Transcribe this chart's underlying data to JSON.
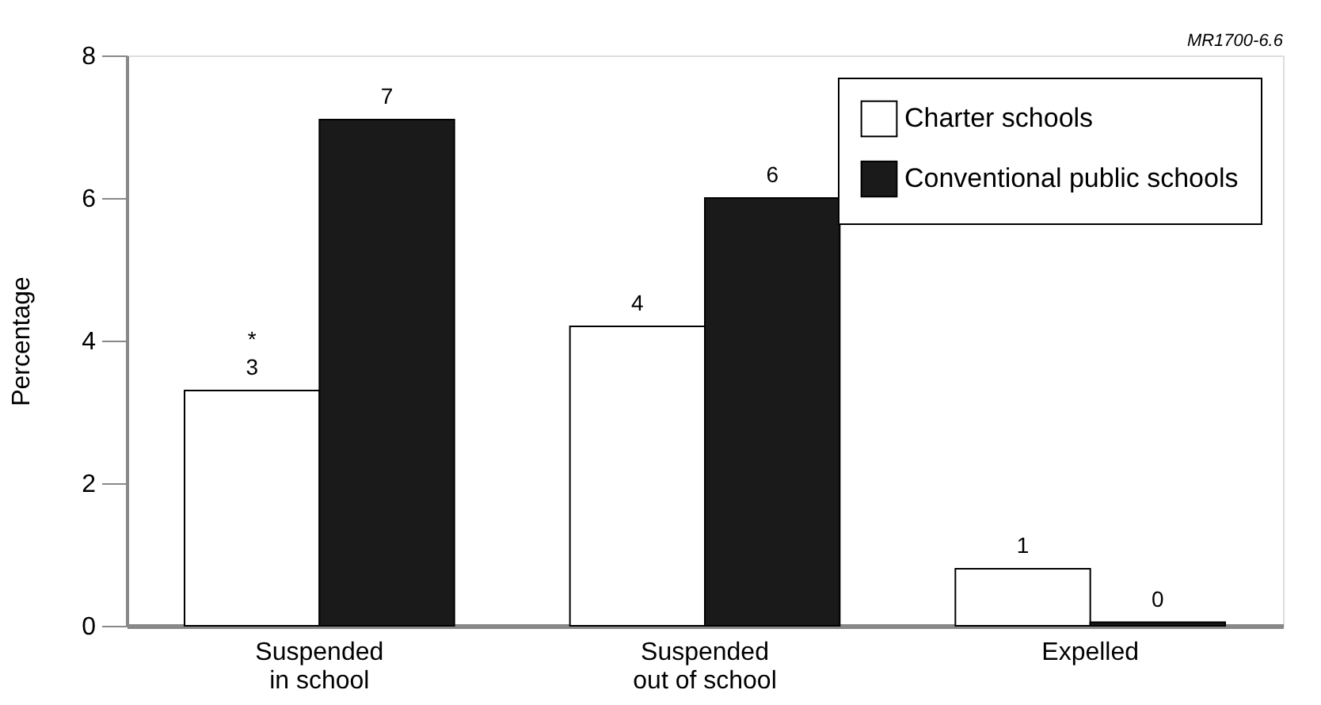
{
  "chart_data": {
    "type": "bar",
    "ylabel": "Percentage",
    "categories": [
      "Suspended\nin school",
      "Suspended\nout of school",
      "Expelled"
    ],
    "series": [
      {
        "name": "Charter schools",
        "color": "#ffffff",
        "values": [
          3.3,
          4.2,
          0.8
        ],
        "value_labels": [
          "3",
          "4",
          "1"
        ]
      },
      {
        "name": "Conventional public schools",
        "color": "#1a1a1a",
        "values": [
          7.1,
          6.0,
          0.05
        ],
        "value_labels": [
          "7",
          "6",
          "0"
        ]
      }
    ],
    "ylim": [
      0,
      8
    ],
    "yticks": [
      0,
      2,
      4,
      6,
      8
    ],
    "grid": false,
    "legend": "top right",
    "annotations": [
      "MR1700-6.6",
      {
        "text": "*",
        "x": "Suspended\nin school",
        "y": 4.0
      }
    ]
  }
}
